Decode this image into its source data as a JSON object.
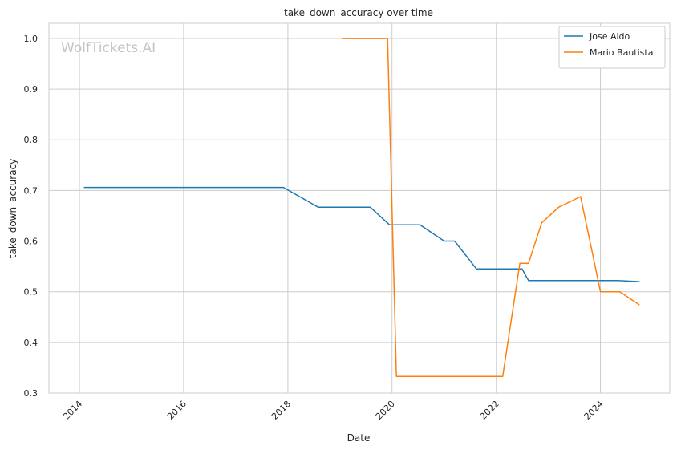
{
  "chart_data": {
    "type": "line",
    "title": "take_down_accuracy over time",
    "xlabel": "Date",
    "ylabel": "take_down_accuracy",
    "watermark": "WolfTickets.AI",
    "xlim": [
      "2013-06-01",
      "2025-05-01"
    ],
    "ylim": [
      0.3,
      1.03
    ],
    "xticks": [
      "2014",
      "2016",
      "2018",
      "2020",
      "2022",
      "2024"
    ],
    "yticks": [
      0.3,
      0.4,
      0.5,
      0.6,
      0.7,
      0.8,
      0.9,
      1.0
    ],
    "ytick_labels": [
      "0.3",
      "0.4",
      "0.5",
      "0.6",
      "0.7",
      "0.8",
      "0.9",
      "1.0"
    ],
    "grid": true,
    "legend_position": "top-right",
    "series": [
      {
        "name": "Jose Aldo",
        "color": "#1f77b4",
        "points": [
          [
            "2014-02-01",
            0.706
          ],
          [
            "2017-12-01",
            0.706
          ],
          [
            "2018-08-01",
            0.667
          ],
          [
            "2019-08-01",
            0.667
          ],
          [
            "2019-12-15",
            0.632
          ],
          [
            "2020-07-15",
            0.632
          ],
          [
            "2021-01-01",
            0.6
          ],
          [
            "2021-03-15",
            0.6
          ],
          [
            "2021-08-15",
            0.545
          ],
          [
            "2022-07-01",
            0.545
          ],
          [
            "2022-08-15",
            0.522
          ],
          [
            "2024-05-01",
            0.522
          ],
          [
            "2024-10-01",
            0.52
          ]
        ]
      },
      {
        "name": "Mario Bautista",
        "color": "#ff7f0e",
        "points": [
          [
            "2019-01-15",
            1.0
          ],
          [
            "2019-12-01",
            1.0
          ],
          [
            "2020-02-01",
            0.333
          ],
          [
            "2022-02-15",
            0.333
          ],
          [
            "2022-06-15",
            0.556
          ],
          [
            "2022-08-15",
            0.556
          ],
          [
            "2022-11-15",
            0.636
          ],
          [
            "2023-03-15",
            0.667
          ],
          [
            "2023-08-15",
            0.688
          ],
          [
            "2024-01-01",
            0.5
          ],
          [
            "2024-05-15",
            0.5
          ],
          [
            "2024-10-01",
            0.474
          ]
        ]
      }
    ]
  }
}
